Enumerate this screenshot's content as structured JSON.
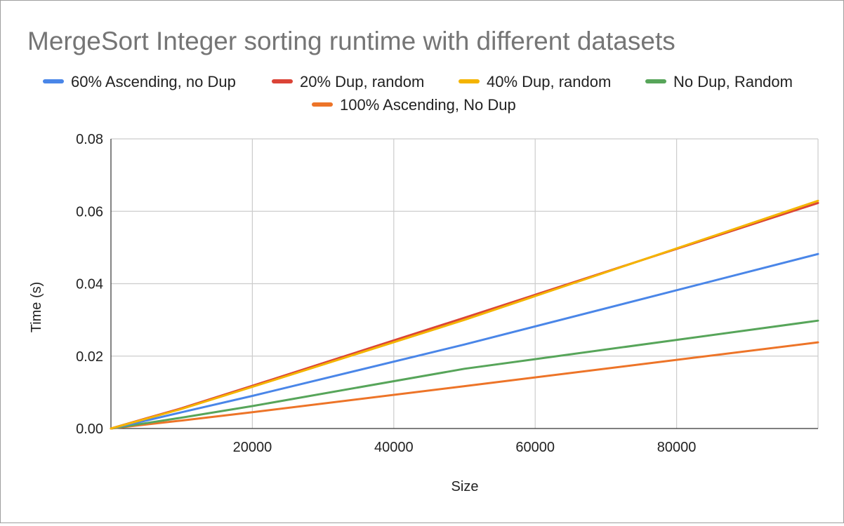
{
  "chart_data": {
    "type": "line",
    "title": "MergeSort Integer sorting runtime with different datasets",
    "xlabel": "Size",
    "ylabel": "Time (s)",
    "xlim": [
      0,
      100000
    ],
    "ylim": [
      0,
      0.08
    ],
    "x_ticks": [
      "20000",
      "40000",
      "60000",
      "80000"
    ],
    "x_tick_values": [
      20000,
      40000,
      60000,
      80000
    ],
    "y_ticks": [
      "0.00",
      "0.02",
      "0.04",
      "0.06",
      "0.08"
    ],
    "y_tick_values": [
      0,
      0.02,
      0.04,
      0.06,
      0.08
    ],
    "grid": true,
    "legend_position": "top",
    "x": [
      0,
      5000,
      10000,
      20000,
      50000,
      100000
    ],
    "series": [
      {
        "name": "60% Ascending, no Dup",
        "color": "#4a86e8",
        "values": [
          0,
          0.0022,
          0.0045,
          0.009,
          0.0232,
          0.0482
        ]
      },
      {
        "name": "20% Dup, random",
        "color": "#db4437",
        "values": [
          0,
          0.0028,
          0.0056,
          0.0118,
          0.0306,
          0.0623
        ]
      },
      {
        "name": "40% Dup, random",
        "color": "#f4b400",
        "values": [
          0,
          0.0027,
          0.0054,
          0.0115,
          0.03,
          0.0629
        ]
      },
      {
        "name": "No Dup, Random",
        "color": "#57a55a",
        "values": [
          0,
          0.0015,
          0.003,
          0.0062,
          0.0165,
          0.0298
        ]
      },
      {
        "name": "100% Ascending, No Dup",
        "color": "#ed7428",
        "values": [
          0,
          0.0011,
          0.0022,
          0.0045,
          0.0117,
          0.0238
        ]
      }
    ]
  }
}
